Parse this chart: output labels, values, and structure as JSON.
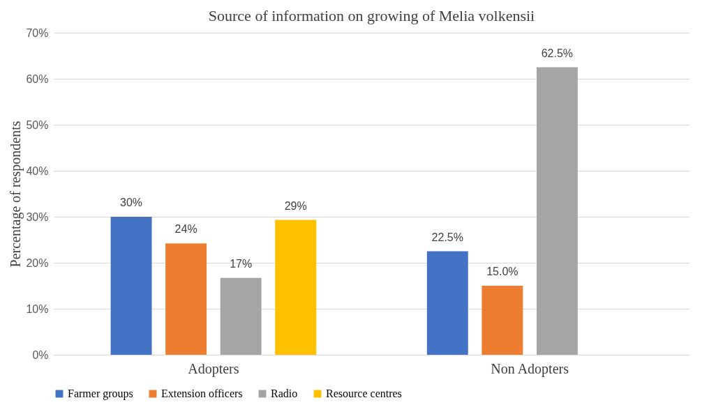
{
  "chart_data": {
    "type": "bar",
    "title": "Source of information on growing of Melia volkensii",
    "ylabel": "Percentage of respondents",
    "categories": [
      "Adopters",
      "Non Adopters"
    ],
    "series": [
      {
        "name": "Farmer groups",
        "color": "#4472c4",
        "values": [
          30,
          22.5
        ],
        "value_labels": [
          "30%",
          "22.5%"
        ]
      },
      {
        "name": "Extension officers",
        "color": "#ed7d31",
        "values": [
          24.2,
          15.0
        ],
        "value_labels": [
          "24%",
          "15.0%"
        ]
      },
      {
        "name": "Radio",
        "color": "#a5a5a5",
        "values": [
          16.7,
          62.5
        ],
        "value_labels": [
          "17%",
          "62.5%"
        ]
      },
      {
        "name": "Resource centres",
        "color": "#ffc000",
        "values": [
          29.3,
          null
        ],
        "value_labels": [
          "29%",
          null
        ]
      }
    ],
    "ylim": [
      0,
      70
    ],
    "yticks": [
      {
        "value": 0,
        "label": "0%"
      },
      {
        "value": 10,
        "label": "10%"
      },
      {
        "value": 20,
        "label": "20%"
      },
      {
        "value": 30,
        "label": "30%"
      },
      {
        "value": 40,
        "label": "40%"
      },
      {
        "value": 50,
        "label": "50%"
      },
      {
        "value": 60,
        "label": "60%"
      },
      {
        "value": 70,
        "label": "70%"
      }
    ],
    "grid": "y",
    "legend": "bottom"
  }
}
